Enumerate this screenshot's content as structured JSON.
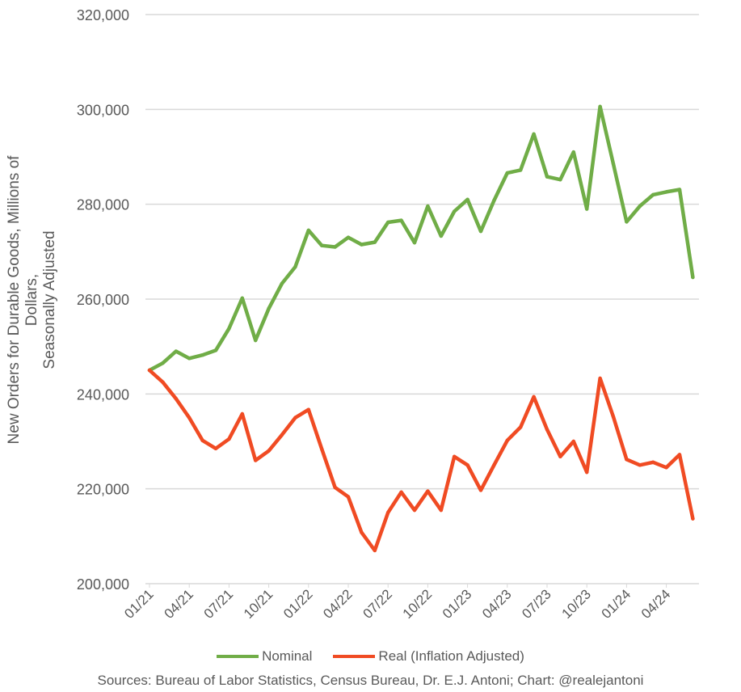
{
  "chart_data": {
    "type": "line",
    "title": "",
    "ylabel": "New Orders for Durable Goods, Millions of Dollars, Seasonally Adjusted",
    "ylabel_lines": [
      "New Orders for Durable Goods, Millions of Dollars,",
      "Seasonally Adjusted"
    ],
    "xlabel": "",
    "ylim": [
      200000,
      320000
    ],
    "yticks": [
      200000,
      220000,
      240000,
      260000,
      280000,
      300000,
      320000
    ],
    "ytick_labels": [
      "200,000",
      "220,000",
      "240,000",
      "260,000",
      "280,000",
      "300,000",
      "320,000"
    ],
    "xtick_labels": [
      "01/21",
      "04/21",
      "07/21",
      "10/21",
      "01/22",
      "04/22",
      "07/22",
      "10/22",
      "01/23",
      "04/23",
      "07/23",
      "10/23",
      "01/24",
      "04/24"
    ],
    "x_period": "monthly 01/21 to 06/24",
    "grid": true,
    "legend_position": "bottom",
    "series": [
      {
        "name": "Nominal",
        "color": "#70AD47",
        "values": [
          245000,
          246500,
          249000,
          247500,
          248200,
          249200,
          253800,
          260200,
          251300,
          258000,
          263300,
          266800,
          274500,
          271300,
          271000,
          273000,
          271500,
          272000,
          276200,
          276600,
          271900,
          279600,
          273300,
          278500,
          281000,
          274300,
          280800,
          286600,
          287200,
          294800,
          285800,
          285200,
          291000,
          279000,
          300600,
          288500,
          276300,
          279600,
          282000,
          282600,
          283100,
          264600
        ]
      },
      {
        "name": "Real (Inflation Adjusted)",
        "color": "#F04B23",
        "values": [
          245000,
          242500,
          239000,
          235000,
          230200,
          228500,
          230500,
          235800,
          226000,
          228000,
          231400,
          235000,
          236700,
          228400,
          220300,
          218300,
          210800,
          207000,
          215000,
          219300,
          215500,
          219500,
          215500,
          226800,
          225000,
          219700,
          225000,
          230200,
          233000,
          239400,
          232500,
          226800,
          230000,
          223500,
          243300,
          235200,
          226200,
          225000,
          225600,
          224500,
          227200,
          213700
        ]
      }
    ],
    "source": "Sources: Bureau of Labor Statistics, Census Bureau, Dr. E.J. Antoni; Chart: @realejantoni"
  }
}
